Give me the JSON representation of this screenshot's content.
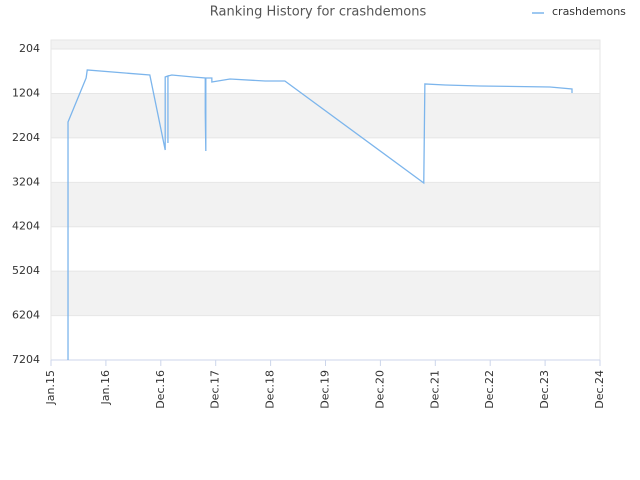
{
  "chart_data": {
    "type": "line",
    "title": "Ranking History for crashdemons",
    "x": [
      0.31,
      0.31,
      0.64,
      0.66,
      1.8,
      2.08,
      2.08,
      2.13,
      2.13,
      2.13,
      2.2,
      2.59,
      2.81,
      2.81,
      2.82,
      2.82,
      2.93,
      2.93,
      3.26,
      3.9,
      4.26,
      6.79,
      6.81,
      7.18,
      7.81,
      9.09,
      9.49,
      9.49
    ],
    "series": [
      {
        "name": "crashdemons",
        "color": "#7cb5ec",
        "values": [
          7204,
          1846,
          855,
          675,
          788,
          2476,
          833,
          810,
          2319,
          810,
          788,
          833,
          855,
          1643,
          2499,
          855,
          855,
          945,
          878,
          923,
          923,
          3219,
          990,
          1013,
          1035,
          1058,
          1103,
          1193
        ]
      }
    ],
    "xlim": [
      0,
      10
    ],
    "xticks": [
      {
        "value": 0,
        "label": "Jan.15"
      },
      {
        "value": 1,
        "label": "Jan.16"
      },
      {
        "value": 2,
        "label": "Dec.16"
      },
      {
        "value": 3,
        "label": "Dec.17"
      },
      {
        "value": 4,
        "label": "Dec.18"
      },
      {
        "value": 5,
        "label": "Dec.19"
      },
      {
        "value": 6,
        "label": "Dec.20"
      },
      {
        "value": 7,
        "label": "Dec.21"
      },
      {
        "value": 8,
        "label": "Dec.22"
      },
      {
        "value": 9,
        "label": "Dec.23"
      },
      {
        "value": 10,
        "label": "Dec.24"
      }
    ],
    "ylim": [
      0,
      7204
    ],
    "y_inverted": true,
    "yticks": [
      204,
      1204,
      2204,
      3204,
      4204,
      5204,
      6204,
      7204
    ],
    "grid": true,
    "legend": "top-right"
  }
}
